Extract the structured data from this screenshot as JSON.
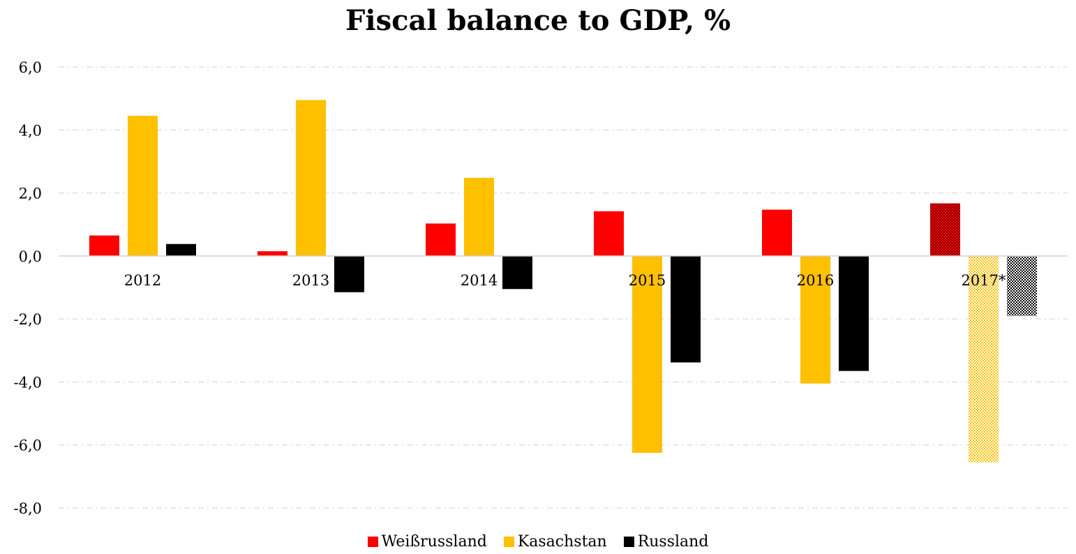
{
  "chart_data": {
    "type": "bar",
    "title": "Fiscal balance to GDP, %",
    "xlabel": "",
    "ylabel": "",
    "categories": [
      "2012",
      "2013",
      "2014",
      "2015",
      "2016",
      "2017*"
    ],
    "series": [
      {
        "name": "Weißrussland",
        "color": "#ff0000",
        "values": [
          0.65,
          0.15,
          1.03,
          1.42,
          1.47,
          1.67
        ]
      },
      {
        "name": "Kasachstan",
        "color": "#ffc000",
        "values": [
          4.45,
          4.95,
          2.48,
          -6.25,
          -4.05,
          -6.55
        ]
      },
      {
        "name": "Russland",
        "color": "#000000",
        "values": [
          0.38,
          -1.15,
          -1.05,
          -3.38,
          -3.65,
          -1.9
        ]
      }
    ],
    "ylim": [
      -8,
      6
    ],
    "yticks": [
      6,
      4,
      2,
      0,
      -2,
      -4,
      -6,
      -8
    ],
    "ytick_labels": [
      "6,0",
      "4,0",
      "2,0",
      "0,0",
      "-2,0",
      "-4,0",
      "-6,0",
      "-8,0"
    ],
    "estimate_categories": [
      "2017*"
    ],
    "grid": true,
    "legend_position": "bottom"
  }
}
